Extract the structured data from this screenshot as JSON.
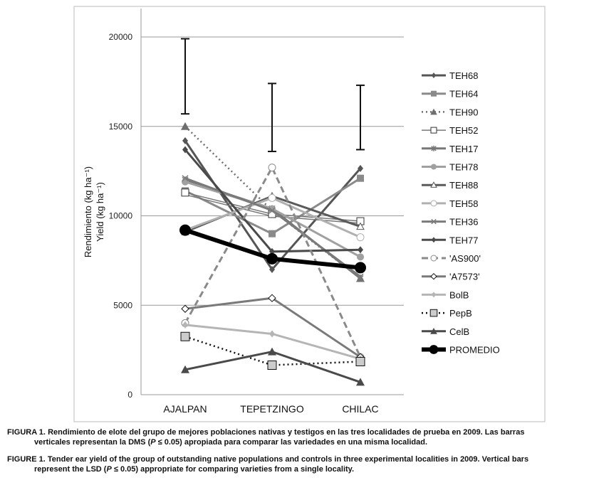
{
  "chart_data": {
    "type": "line",
    "ylabel_es": "Rendimiento (kg ha⁻¹)",
    "ylabel_en": "Yield (kg ha⁻¹)",
    "categories": [
      "AJALPAN",
      "TEPETZINGO",
      "CHILAC"
    ],
    "ylim": [
      0,
      20000
    ],
    "yticks": [
      0,
      5000,
      10000,
      15000,
      20000
    ],
    "grid": true,
    "legend_position": "right",
    "lsd_bars": [
      {
        "low": 15700,
        "high": 19900
      },
      {
        "low": 13600,
        "high": 17400
      },
      {
        "low": 13700,
        "high": 17300
      }
    ],
    "series": [
      {
        "name": "TEH68",
        "values": [
          14200,
          7000,
          12650
        ],
        "color": "#555555",
        "marker": "diamond",
        "dash": "solid"
      },
      {
        "name": "TEH64",
        "values": [
          11400,
          9000,
          12100
        ],
        "color": "#8a8a8a",
        "marker": "square",
        "dash": "solid"
      },
      {
        "name": "TEH90",
        "values": [
          15000,
          10300,
          6500
        ],
        "color": "#6e6e6e",
        "marker": "triangle",
        "dash": "dotted"
      },
      {
        "name": "TEH52",
        "values": [
          11300,
          10100,
          9700
        ],
        "color": "#777777",
        "marker": "open-square",
        "dash": "double"
      },
      {
        "name": "TEH17",
        "values": [
          12000,
          10400,
          6500
        ],
        "color": "#777777",
        "marker": "star",
        "dash": "solid"
      },
      {
        "name": "TEH78",
        "values": [
          11900,
          10400,
          7700
        ],
        "color": "#a0a0a0",
        "marker": "circle",
        "dash": "solid"
      },
      {
        "name": "TEH88",
        "values": [
          9100,
          11100,
          9400
        ],
        "color": "#5a5a5a",
        "marker": "open-triangle",
        "dash": "solid"
      },
      {
        "name": "TEH58",
        "values": [
          9200,
          11000,
          8800
        ],
        "color": "#b0b0b0",
        "marker": "open-circle",
        "dash": "solid"
      },
      {
        "name": "TEH36",
        "values": [
          12100,
          10300,
          6600
        ],
        "color": "#7a7a7a",
        "marker": "x",
        "dash": "solid"
      },
      {
        "name": "TEH77",
        "values": [
          13700,
          8000,
          8100
        ],
        "color": "#4a4a4a",
        "marker": "diamond",
        "dash": "solid"
      },
      {
        "name": "'AS900'",
        "values": [
          4000,
          12700,
          2100
        ],
        "color": "#8a8a8a",
        "marker": "open-circle",
        "dash": "dashed"
      },
      {
        "name": "'A7573'",
        "values": [
          4800,
          5400,
          2100
        ],
        "color": "#7a7a7a",
        "marker": "open-diamond",
        "dash": "solid"
      },
      {
        "name": "BolB",
        "values": [
          3900,
          3400,
          2000
        ],
        "color": "#b5b5b5",
        "marker": "diamond",
        "dash": "solid"
      },
      {
        "name": "PepB",
        "values": [
          3250,
          1650,
          1850
        ],
        "color": "#111111",
        "marker": "grey-square",
        "dash": "dotted"
      },
      {
        "name": "CelB",
        "values": [
          1400,
          2400,
          700
        ],
        "color": "#4a4a4a",
        "marker": "triangle",
        "dash": "solid"
      },
      {
        "name": "PROMEDIO",
        "values": [
          9200,
          7600,
          7100
        ],
        "color": "#000000",
        "marker": "big-circle",
        "dash": "thick"
      }
    ]
  },
  "caption": {
    "es_label": "FIGURA 1.",
    "es_text_a": "Rendimiento de elote del grupo de mejores poblaciones nativas y testigos en las tres localidades de prueba en 2009. Las barras",
    "es_text_b": "verticales representan la DMS (",
    "es_p": "P",
    "es_text_c": " ≤ 0.05) apropiada para comparar las variedades en una misma localidad.",
    "en_label": "FIGURE 1.",
    "en_text_a": "Tender ear yield of the group of outstanding native populations and controls in three experimental localities in 2009. Vertical bars",
    "en_text_b": "represent the LSD (",
    "en_p": "P",
    "en_text_c": " ≤ 0.05) appropriate for comparing varieties from a single locality."
  }
}
